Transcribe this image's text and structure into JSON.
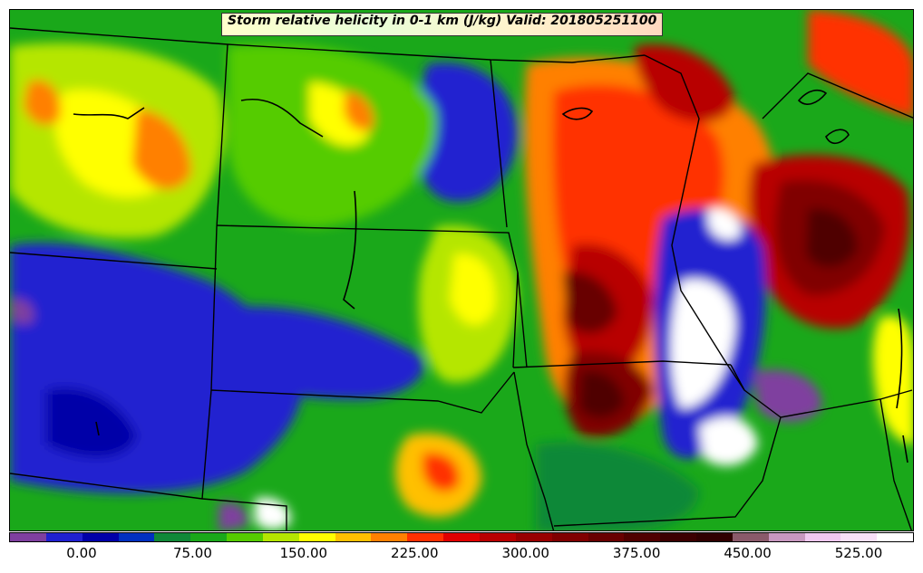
{
  "title": "Storm relative helicity in 0-1 km (J/kg) Valid: 201805251100",
  "colorbar": {
    "colors": [
      "#7f3f9f",
      "#2020d0",
      "#0000a8",
      "#0030c0",
      "#108838",
      "#1aa81a",
      "#55cc00",
      "#b5e600",
      "#ffff00",
      "#ffc000",
      "#ff8000",
      "#ff3000",
      "#e00000",
      "#b80000",
      "#980000",
      "#800000",
      "#680000",
      "#500000",
      "#3c0000",
      "#300000",
      "#8a5a6a",
      "#c898c0",
      "#f0c8f0",
      "#f8e0f8",
      "#ffffff"
    ],
    "ticks": [
      "0.00",
      "75.00",
      "150.00",
      "225.00",
      "300.00",
      "375.00",
      "450.00",
      "525.00"
    ]
  },
  "field_levels": [
    {
      "value": 0,
      "color": "#2020d0"
    },
    {
      "value": 25,
      "color": "#108838"
    },
    {
      "value": 50,
      "color": "#55cc00"
    },
    {
      "value": 75,
      "color": "#b5e600"
    },
    {
      "value": 100,
      "color": "#ffff00"
    },
    {
      "value": 125,
      "color": "#ff8000"
    },
    {
      "value": 175,
      "color": "#ff3000"
    },
    {
      "value": 225,
      "color": "#b80000"
    },
    {
      "value": 300,
      "color": "#680000"
    },
    {
      "value": 450,
      "color": "#ffffff"
    }
  ]
}
